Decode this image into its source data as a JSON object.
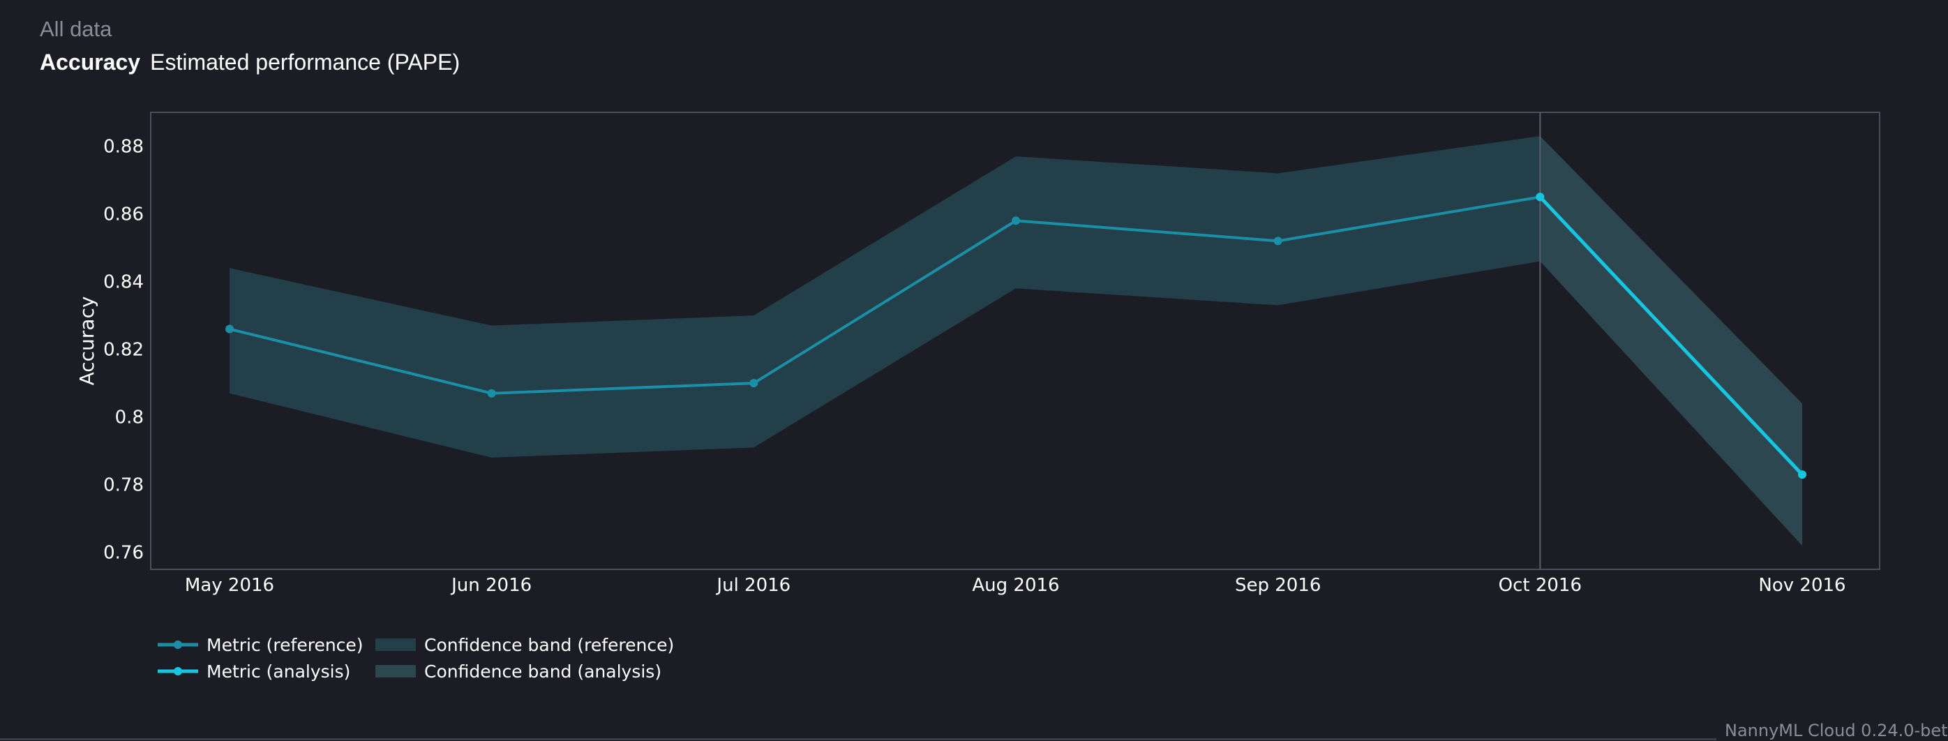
{
  "header": {
    "subtitle": "All data",
    "metric": "Accuracy",
    "method": "Estimated performance (PAPE)"
  },
  "footer": {
    "version": "NannyML Cloud 0.24.0-bet"
  },
  "colors": {
    "background": "#1c1d24",
    "reference_line": "#1b8fa6",
    "analysis_line": "#16c6e0",
    "reference_band": "#223f4a",
    "analysis_band": "#2d4751"
  },
  "chart_data": {
    "type": "line",
    "title": "",
    "xlabel": "",
    "ylabel": "Accuracy",
    "ylim": [
      0.755,
      0.89
    ],
    "yticks": [
      0.76,
      0.78,
      0.8,
      0.82,
      0.84,
      0.86,
      0.88
    ],
    "ytick_labels": [
      "0.76",
      "0.78",
      "0.8",
      "0.82",
      "0.84",
      "0.86",
      "0.88"
    ],
    "categories": [
      "May 2016",
      "Jun 2016",
      "Jul 2016",
      "Aug 2016",
      "Sep 2016",
      "Oct 2016",
      "Nov 2016"
    ],
    "grid": false,
    "reference_end_marker": "Oct 2016",
    "series": [
      {
        "name": "Metric (reference)",
        "kind": "line",
        "x": [
          "May 2016",
          "Jun 2016",
          "Jul 2016",
          "Aug 2016",
          "Sep 2016",
          "Oct 2016"
        ],
        "values": [
          0.826,
          0.807,
          0.81,
          0.858,
          0.852,
          0.865
        ]
      },
      {
        "name": "Metric (analysis)",
        "kind": "line",
        "x": [
          "Oct 2016",
          "Nov 2016"
        ],
        "values": [
          0.865,
          0.783
        ]
      },
      {
        "name": "Confidence band (reference)",
        "kind": "band",
        "x": [
          "May 2016",
          "Jun 2016",
          "Jul 2016",
          "Aug 2016",
          "Sep 2016",
          "Oct 2016"
        ],
        "upper": [
          0.844,
          0.827,
          0.83,
          0.877,
          0.872,
          0.883
        ],
        "lower": [
          0.807,
          0.788,
          0.791,
          0.838,
          0.833,
          0.846
        ]
      },
      {
        "name": "Confidence band (analysis)",
        "kind": "band",
        "x": [
          "Oct 2016",
          "Nov 2016"
        ],
        "upper": [
          0.883,
          0.804
        ],
        "lower": [
          0.846,
          0.762
        ]
      }
    ],
    "legend": {
      "placement": "bottom-left",
      "items": [
        "Metric (reference)",
        "Metric (analysis)",
        "Confidence band (reference)",
        "Confidence band (analysis)"
      ]
    }
  }
}
